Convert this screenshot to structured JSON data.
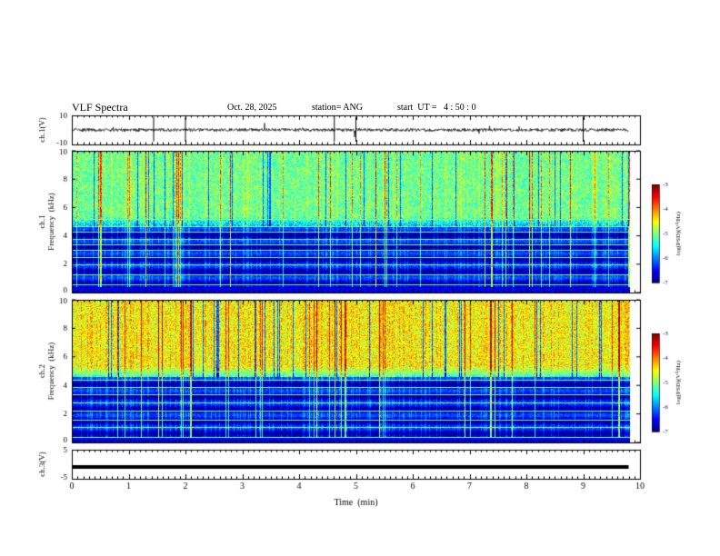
{
  "header": {
    "title": "VLF Spectra",
    "date": "Oct. 28, 2025",
    "station": "station= ANG",
    "start": "start  UT =   4 : 50 : 0"
  },
  "chart_data": {
    "type": "heatmap",
    "title": "VLF Spectra",
    "xlabel": "Time  (min)",
    "xlim": [
      0,
      10
    ],
    "x_ticks": [
      "0",
      "1",
      "2",
      "3",
      "4",
      "5",
      "6",
      "7",
      "8",
      "9",
      "10"
    ],
    "panels": [
      {
        "id": "ch1-waveform",
        "kind": "line",
        "ylabel": "ch.1(V)",
        "ylim": [
          -10,
          10
        ],
        "y_ticks": [
          "10",
          "-10"
        ],
        "baseline": 0,
        "data_end_min": 9.8
      },
      {
        "id": "ch1-spectrogram",
        "kind": "spectrogram",
        "ylabel_line1": "ch.1",
        "ylabel_line2": "Frequency  (kHz)",
        "ylim": [
          0,
          10
        ],
        "y_ticks": [
          "0",
          "2",
          "4",
          "6",
          "8",
          "10"
        ],
        "data_end_min": 9.8,
        "noise_floor_khz": 4.6,
        "band_lines_khz": [
          0.6,
          1.3,
          2.0,
          2.5,
          3.0,
          3.4,
          3.8,
          4.3,
          4.7,
          5.2
        ],
        "colorbar": {
          "label": "log(PSD)(V²/Hz)",
          "range": [
            -7,
            -3
          ],
          "ticks": [
            "-3",
            "-4",
            "-5",
            "-6",
            "-7"
          ]
        }
      },
      {
        "id": "ch2-spectrogram",
        "kind": "spectrogram",
        "ylabel_line1": "ch.2",
        "ylabel_line2": "Frequency  (kHz)",
        "ylim": [
          0,
          10
        ],
        "y_ticks": [
          "0",
          "2",
          "4",
          "6",
          "8",
          "10"
        ],
        "data_end_min": 9.8,
        "noise_floor_khz": 4.6,
        "band_lines_khz": [
          0.4,
          1.1,
          1.6,
          2.2,
          2.8,
          3.4,
          3.9,
          4.4,
          5.0
        ],
        "colorbar": {
          "label": "log(PSD)(V²/Hz)",
          "range": [
            -7,
            -3
          ],
          "ticks": [
            "-3",
            "-4",
            "-5",
            "-6",
            "-7"
          ]
        }
      },
      {
        "id": "ch3-waveform",
        "kind": "line",
        "ylabel": "ch.3(V)",
        "ylim": [
          -5,
          5
        ],
        "y_ticks": [
          "5",
          "-5"
        ],
        "baseline": -0.9,
        "data_end_min": 9.8
      }
    ]
  }
}
